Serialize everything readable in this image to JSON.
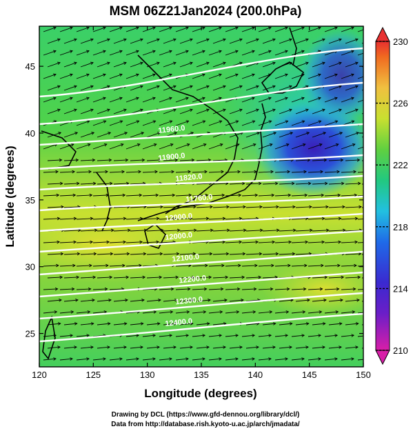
{
  "chart_data": {
    "type": "heatmap",
    "title": "MSM 06Z21Jan2024 (200.0hPa)",
    "xlabel": "Longitude (degrees)",
    "ylabel": "Latitude  (degrees)",
    "xlim": [
      120,
      150
    ],
    "ylim": [
      22.5,
      48
    ],
    "x_ticks": [
      120,
      125,
      130,
      135,
      140,
      145,
      150
    ],
    "y_ticks": [
      25,
      30,
      35,
      40,
      45
    ],
    "colorbar": {
      "min": 210,
      "max": 230,
      "tick_values": [
        210,
        214,
        218,
        222,
        226,
        230
      ],
      "stops": [
        "#d81ea8",
        "#4b22c8",
        "#1f5fe6",
        "#22c8e0",
        "#22c870",
        "#c8e030",
        "#f0c040",
        "#f06a20",
        "#e83030"
      ]
    },
    "temperature_field": [
      {
        "lon": 146.5,
        "lat": 40.2,
        "value": 213.5,
        "note": "cold core"
      },
      {
        "lon": 148.5,
        "lat": 38.5,
        "value": 214.0
      },
      {
        "lon": 143.0,
        "lat": 44.0,
        "value": 216.5
      },
      {
        "lon": 127.0,
        "lat": 33.5,
        "value": 225.0
      },
      {
        "lon": 147.0,
        "lat": 28.0,
        "value": 225.0
      },
      {
        "lon": 123.0,
        "lat": 45.0,
        "value": 222.0
      }
    ],
    "contour_labels": [
      "11960.0",
      "11900.0",
      "11820.0",
      "11760.0",
      "12000.0",
      "12100.0",
      "12200.0",
      "12300.0",
      "12400.0"
    ],
    "wind_vectors": "predominantly westerly jet, strongest near 30-35N"
  },
  "credits": {
    "line1": "Drawing by DCL (https://www.gfd-dennou.org/library/dcl/)",
    "line2": "Data from http://database.rish.kyoto-u.ac.jp/arch/jmadata/"
  },
  "colors": {
    "contour": "#ffffff",
    "vector": "#000000",
    "coast": "#000000"
  }
}
